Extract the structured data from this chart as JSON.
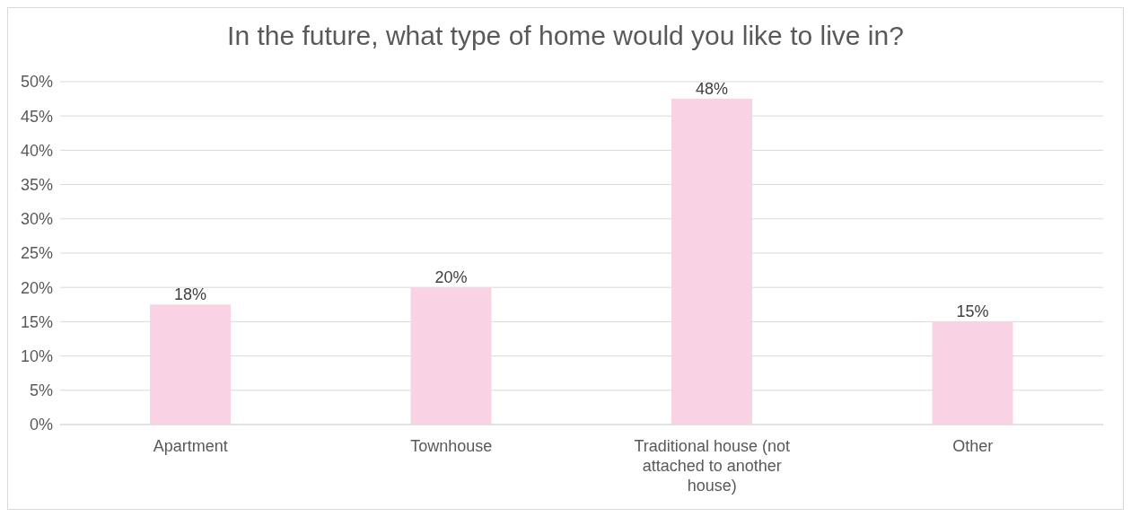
{
  "chart_data": {
    "type": "bar",
    "title": "In the future, what type of home would you like to live in?",
    "categories": [
      "Apartment",
      "Townhouse",
      "Traditional house (not attached to another house)",
      "Other"
    ],
    "values": [
      17.5,
      20,
      47.5,
      15
    ],
    "value_labels": [
      "18%",
      "20%",
      "48%",
      "15%"
    ],
    "color": "#f9d3e3",
    "ylim": [
      0,
      50
    ],
    "yticks": [
      {
        "value": 0,
        "label": "0%"
      },
      {
        "value": 5,
        "label": "5%"
      },
      {
        "value": 10,
        "label": "10%"
      },
      {
        "value": 15,
        "label": "15%"
      },
      {
        "value": 20,
        "label": "20%"
      },
      {
        "value": 25,
        "label": "25%"
      },
      {
        "value": 30,
        "label": "30%"
      },
      {
        "value": 35,
        "label": "35%"
      },
      {
        "value": 40,
        "label": "40%"
      },
      {
        "value": 45,
        "label": "45%"
      },
      {
        "value": 50,
        "label": "50%"
      }
    ],
    "grid": "y",
    "legend": false
  }
}
